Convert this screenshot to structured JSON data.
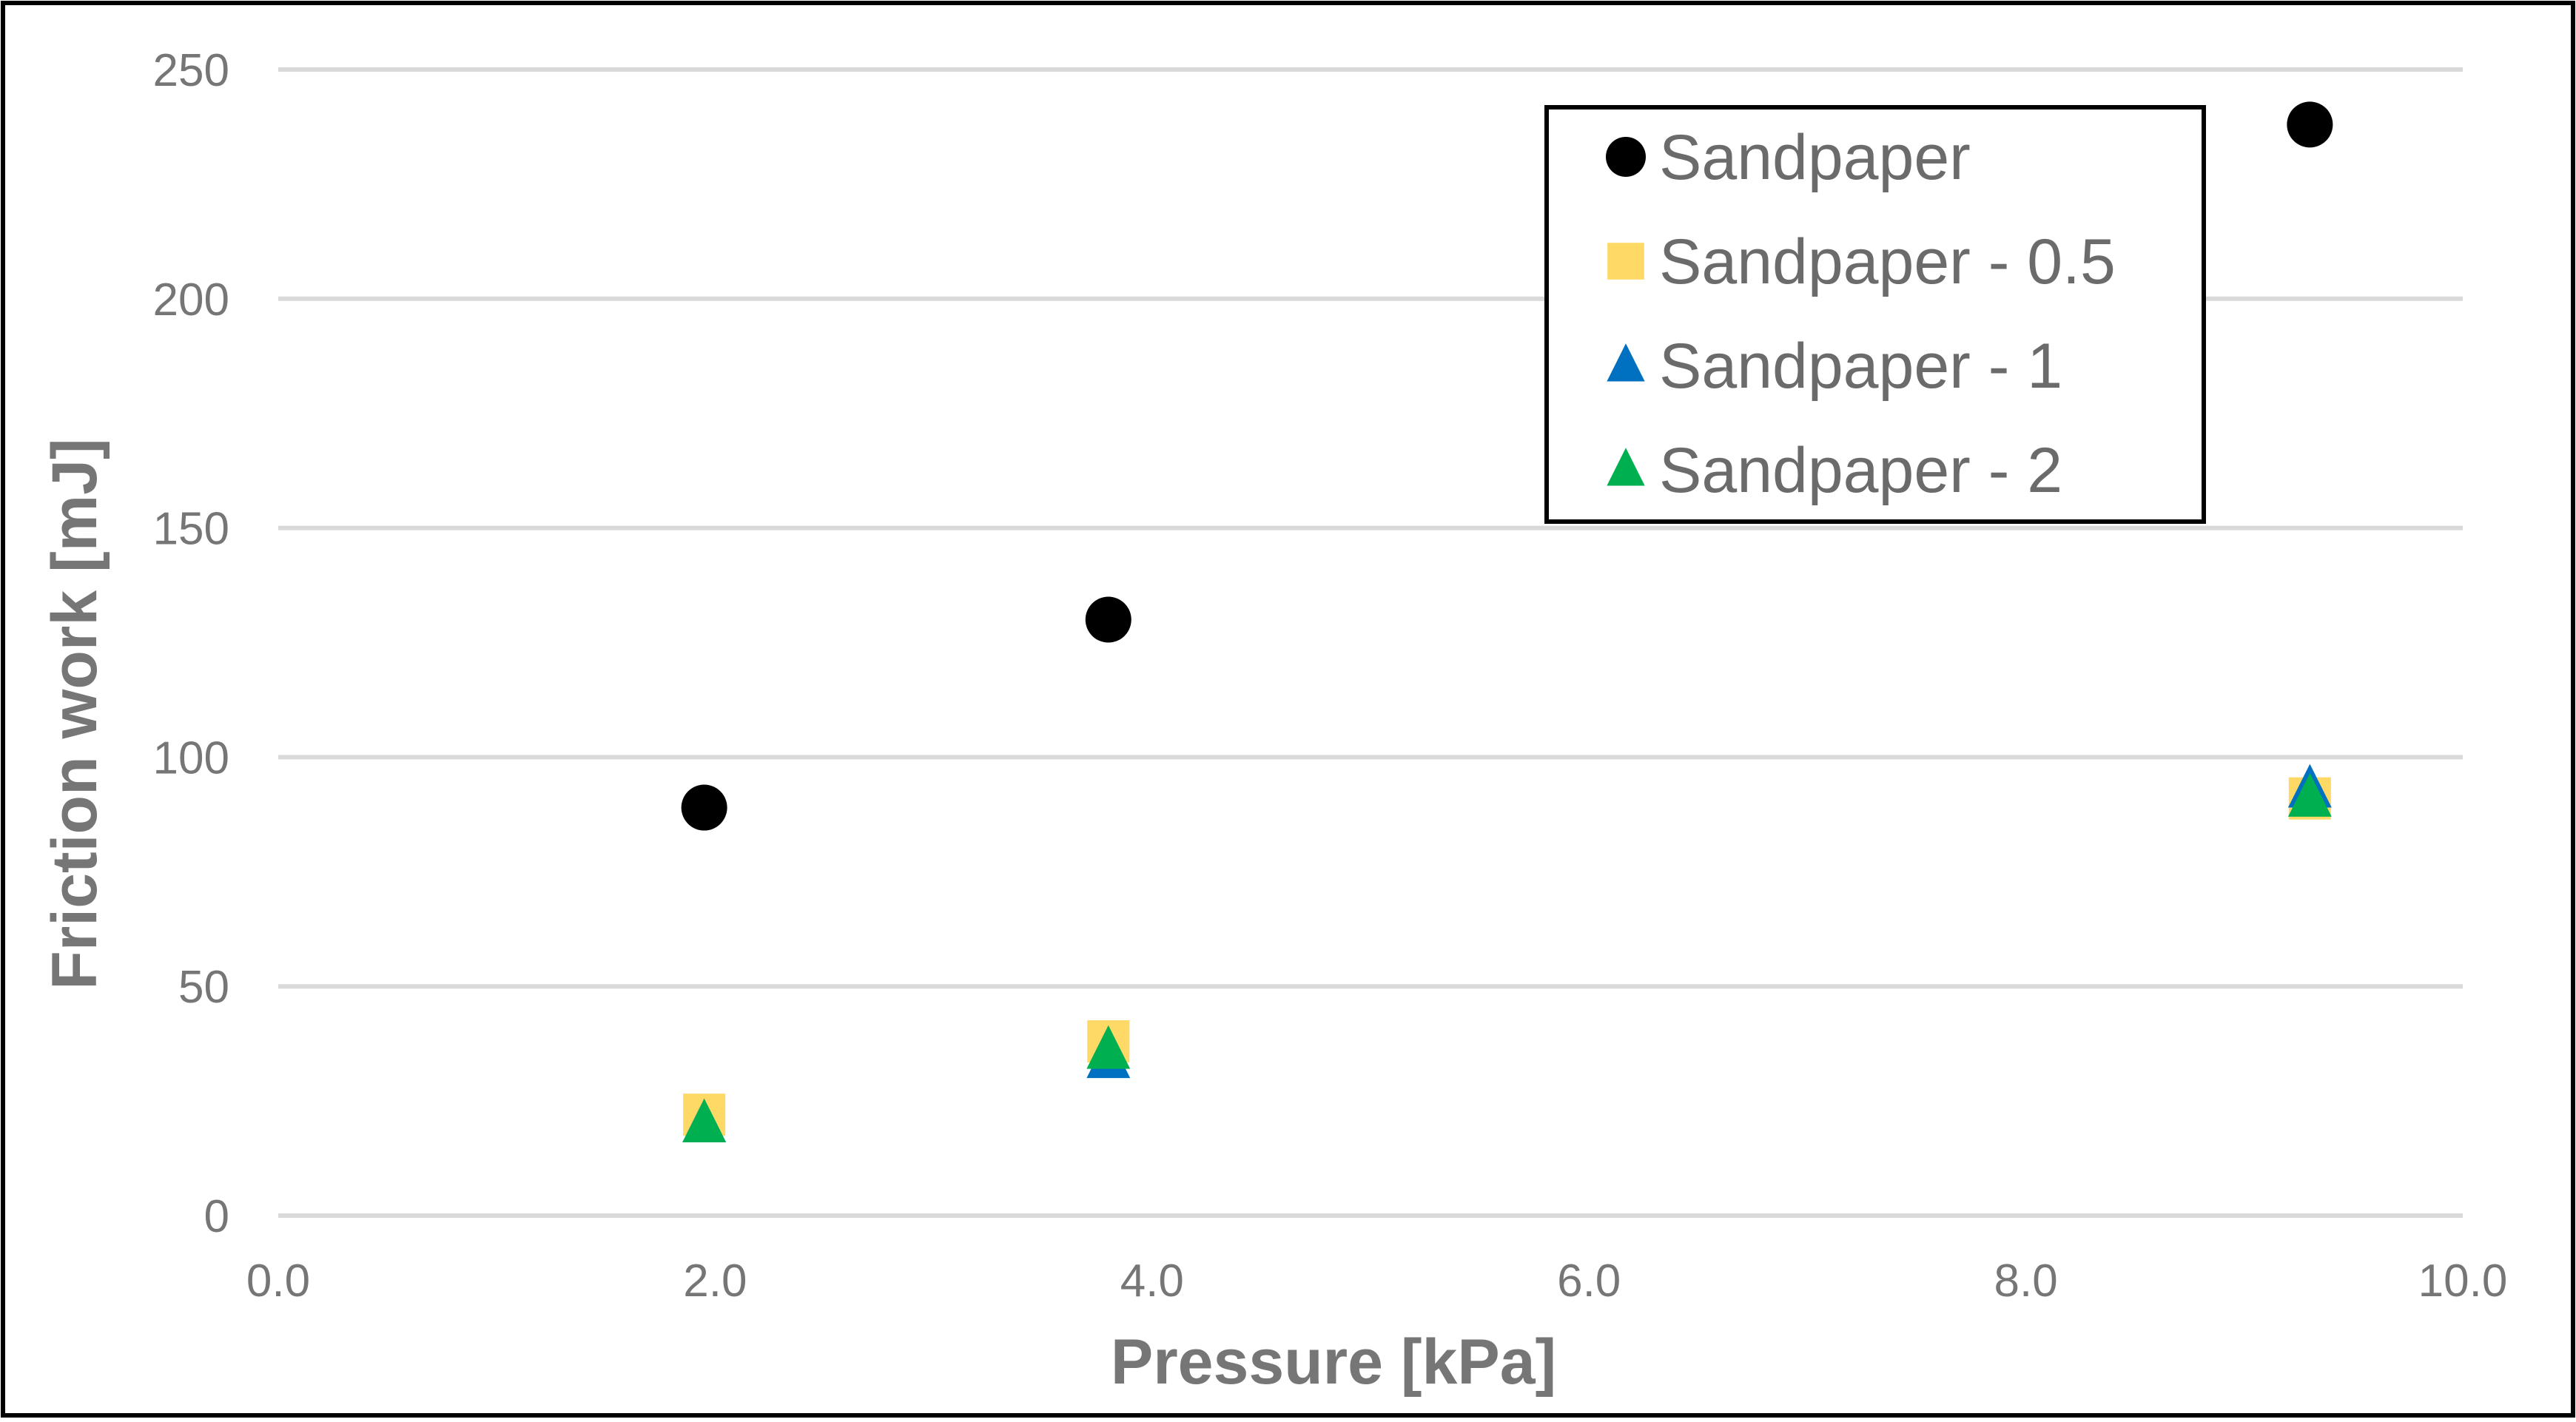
{
  "chart_data": {
    "type": "scatter",
    "title": "",
    "xlabel": "Pressure [kPa]",
    "ylabel": "Friction work [mJ]",
    "xlim": [
      0,
      10
    ],
    "ylim": [
      0,
      250
    ],
    "x_ticks": [
      "0.0",
      "2.0",
      "4.0",
      "6.0",
      "8.0",
      "10.0"
    ],
    "y_ticks": [
      "0",
      "50",
      "100",
      "150",
      "200",
      "250"
    ],
    "x_tick_values": [
      0,
      2,
      4,
      6,
      8,
      10
    ],
    "y_tick_values": [
      0,
      50,
      100,
      150,
      200,
      250
    ],
    "grid": "horizontal",
    "legend_position": "top-right",
    "series": [
      {
        "name": "Sandpaper",
        "marker": "circle",
        "color": "#000000",
        "x": [
          1.95,
          3.8,
          9.3
        ],
        "y": [
          89,
          130,
          238
        ]
      },
      {
        "name": "Sandpaper - 0.5",
        "marker": "square",
        "color": "#FFD966",
        "x": [
          1.95,
          3.8,
          9.3
        ],
        "y": [
          22,
          38,
          91
        ]
      },
      {
        "name": "Sandpaper - 1",
        "marker": "triangle",
        "color": "#0070C0",
        "x": [
          1.95,
          3.8,
          9.3
        ],
        "y": [
          20,
          34,
          93
        ]
      },
      {
        "name": "Sandpaper - 2",
        "marker": "triangle",
        "color": "#00B050",
        "x": [
          1.95,
          3.8,
          9.3
        ],
        "y": [
          20,
          36,
          91
        ]
      }
    ]
  }
}
